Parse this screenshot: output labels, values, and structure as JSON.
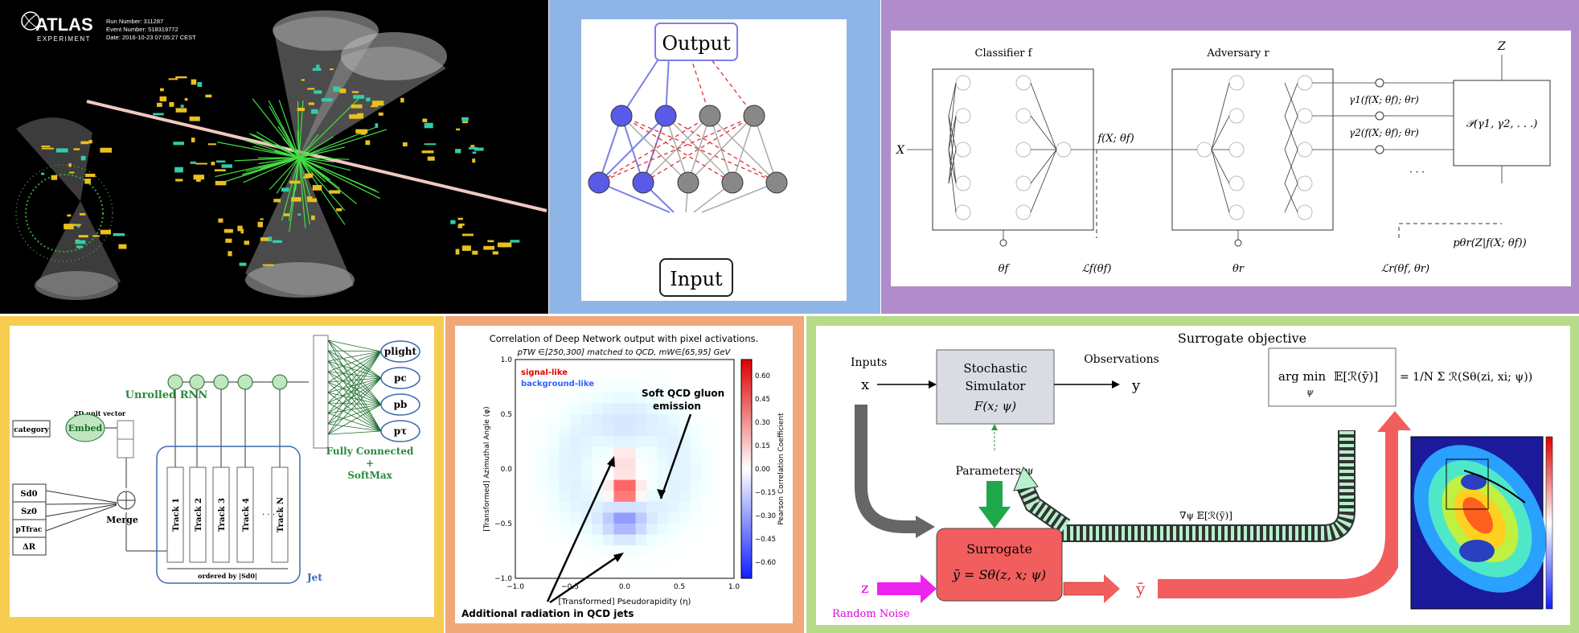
{
  "atlas": {
    "logo": "ATLAS",
    "logo_sub": "EXPERIMENT",
    "run_number": "Run Number: 311287",
    "event_number": "Event Number: 518319772",
    "date": "Date: 2016-10-23 07:05:27 CEST"
  },
  "nn": {
    "output_label": "Output",
    "input_label": "Input"
  },
  "adversarial": {
    "classifier_title": "Classifier f",
    "adversary_title": "Adversary r",
    "x_label": "X",
    "z_label": "Z",
    "f_label": "f(X; θf)",
    "gamma1": "γ1(f(X; θf); θr)",
    "gamma2": "γ2(f(X; θf); θr)",
    "dots": "· · ·",
    "mixture": "𝒫(γ1, γ2, . . .)",
    "theta_f": "θf",
    "theta_r": "θr",
    "loss_f": "ℒf(θf)",
    "loss_r": "ℒr(θf, θr)",
    "posterior": "pθr(Z|f(X; θf))"
  },
  "rnn": {
    "unrolled": "Unrolled RNN",
    "unit_vector": "2D unit vector",
    "embed": "Embed",
    "category": "category",
    "features": [
      "Sd0",
      "Sz0",
      "pTfrac",
      "ΔR"
    ],
    "merge": "Merge",
    "tracks": [
      "Track 1",
      "Track 2",
      "Track 3",
      "Track 4",
      "Track N"
    ],
    "ordered_by": "ordered by |Sd0|",
    "jet": "Jet",
    "outputs": [
      "plight",
      "pc",
      "pb",
      "pτ"
    ],
    "fc_line1": "Fully Connected",
    "fc_line2": "+",
    "fc_line3": "SoftMax"
  },
  "heatmap": {
    "title": "Correlation of Deep Network output with pixel activations.",
    "subtitle": "pTW ∈[250,300] matched to QCD, mW∈[65,95] GeV",
    "legend_signal": "signal-like",
    "legend_background": "background-like",
    "annotation_soft": "Soft QCD gluon",
    "annotation_soft2": "emission",
    "annotation_additional": "Additional radiation in QCD jets",
    "xlabel": "[Transformed] Pseudorapidity (η)",
    "ylabel": "[Transformed] Azimuthal Angle (φ)",
    "colorbar_label": "Pearson Correlation Coefficient",
    "xticks": [
      "−1.0",
      "−0.5",
      "0.0",
      "0.5",
      "1.0"
    ],
    "yticks": [
      "1.0",
      "0.5",
      "0.0",
      "−0.5",
      "−1.0"
    ],
    "cbar_ticks": [
      "0.60",
      "0.45",
      "0.30",
      "0.15",
      "0.00",
      "−0.15",
      "−0.30",
      "−0.45",
      "−0.60"
    ],
    "colors": {
      "signal": "#e00000",
      "background": "#3060ff"
    }
  },
  "surrogate": {
    "title": "Surrogate objective",
    "inputs": "Inputs",
    "x": "x",
    "simulator_line1": "Stochastic",
    "simulator_line2": "Simulator",
    "simulator_line3": "F(x; ψ)",
    "observations": "Observations",
    "y": "y",
    "argmin": "arg min",
    "argmin_sub": "ψ",
    "expectation": "𝔼[ℛ(ȳ)]",
    "approx": "= 1/N Σ ℛ(Sθ(zi, xi; ψ))",
    "parameters": "Parameters ψ",
    "surrogate_line1": "Surrogate",
    "surrogate_line2": "ȳ = Sθ(z, x; ψ)",
    "gradient": "∇ψ 𝔼[ℛ(ȳ)]",
    "z": "z",
    "ybar": "ȳ",
    "random_noise": "Random Noise"
  }
}
